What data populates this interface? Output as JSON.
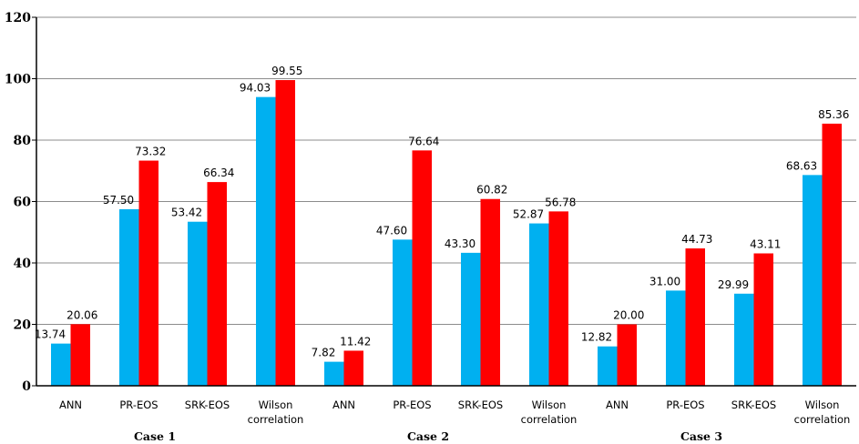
{
  "chart_data": {
    "type": "bar",
    "categories": [
      "ANN",
      "PR-EOS",
      "SRK-EOS",
      "Wilson correlation",
      "ANN",
      "PR-EOS",
      "SRK-EOS",
      "Wilson correlation",
      "ANN",
      "PR-EOS",
      "SRK-EOS",
      "Wilson correlation"
    ],
    "category_lines": [
      [
        "ANN"
      ],
      [
        "PR-EOS"
      ],
      [
        "SRK-EOS"
      ],
      [
        "Wilson",
        "correlation"
      ],
      [
        "ANN"
      ],
      [
        "PR-EOS"
      ],
      [
        "SRK-EOS"
      ],
      [
        "Wilson",
        "correlation"
      ],
      [
        "ANN"
      ],
      [
        "PR-EOS"
      ],
      [
        "SRK-EOS"
      ],
      [
        "Wilson",
        "correlation"
      ]
    ],
    "groups": [
      "Case 1",
      "Case 2",
      "Case 3"
    ],
    "series": [
      {
        "color": "#00B0F0",
        "values": [
          13.74,
          57.5,
          53.42,
          94.03,
          7.82,
          47.6,
          43.3,
          52.87,
          12.82,
          31.0,
          29.99,
          68.63
        ],
        "labels": [
          "13.74",
          "57.50",
          "53.42",
          "94.03",
          "7.82",
          "47.60",
          "43.30",
          "52.87",
          "12.82",
          "31.00",
          "29.99",
          "68.63"
        ]
      },
      {
        "color": "#FF0000",
        "values": [
          20.06,
          73.32,
          66.34,
          99.55,
          11.42,
          76.64,
          60.82,
          56.78,
          20.0,
          44.73,
          43.11,
          85.36
        ],
        "labels": [
          "20.06",
          "73.32",
          "66.34",
          "99.55",
          "11.42",
          "76.64",
          "60.82",
          "56.78",
          "20.00",
          "44.73",
          "43.11",
          "85.36"
        ]
      }
    ],
    "yticks": [
      "0",
      "20",
      "40",
      "60",
      "80",
      "100",
      "120"
    ],
    "ylim": [
      0,
      120
    ],
    "grid": true,
    "legend": "none",
    "title": "",
    "xlabel": "",
    "ylabel": ""
  }
}
